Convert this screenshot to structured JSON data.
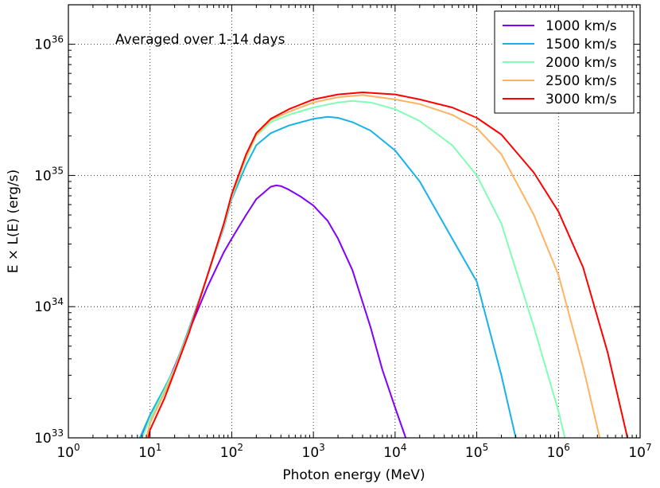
{
  "chart_data": {
    "type": "line",
    "xscale": "log",
    "yscale": "log",
    "xlim": [
      1,
      10000000
    ],
    "ylim": [
      1e+33,
      2e+36
    ],
    "xlabel": "Photon energy (MeV)",
    "ylabel": "E × L(E) (erg/s)",
    "annotation": "Averaged over 1-14 days",
    "grid": true,
    "legend_position": "top-right",
    "x_ticks": [
      {
        "value": 1,
        "base": "10",
        "exp": "0"
      },
      {
        "value": 10,
        "base": "10",
        "exp": "1"
      },
      {
        "value": 100,
        "base": "10",
        "exp": "2"
      },
      {
        "value": 1000,
        "base": "10",
        "exp": "3"
      },
      {
        "value": 10000,
        "base": "10",
        "exp": "4"
      },
      {
        "value": 100000,
        "base": "10",
        "exp": "5"
      },
      {
        "value": 1000000,
        "base": "10",
        "exp": "6"
      },
      {
        "value": 10000000,
        "base": "10",
        "exp": "7"
      }
    ],
    "y_ticks": [
      {
        "value": 1e+33,
        "base": "10",
        "exp": "33"
      },
      {
        "value": 1e+34,
        "base": "10",
        "exp": "34"
      },
      {
        "value": 1e+35,
        "base": "10",
        "exp": "35"
      },
      {
        "value": 1e+36,
        "base": "10",
        "exp": "36"
      }
    ],
    "series": [
      {
        "name": "1000 km/s",
        "color": "#8000ff",
        "points": [
          [
            7.5,
            1e+33
          ],
          [
            10,
            1.4e+33
          ],
          [
            15,
            2.3e+33
          ],
          [
            20,
            3.5e+33
          ],
          [
            30,
            6.5e+33
          ],
          [
            50,
            1.4e+34
          ],
          [
            80,
            2.6e+34
          ],
          [
            100,
            3.3e+34
          ],
          [
            150,
            5e+34
          ],
          [
            200,
            6.6e+34
          ],
          [
            300,
            8.2e+34
          ],
          [
            350,
            8.4e+34
          ],
          [
            400,
            8.3e+34
          ],
          [
            500,
            7.8e+34
          ],
          [
            700,
            6.9e+34
          ],
          [
            1000,
            5.9e+34
          ],
          [
            1500,
            4.5e+34
          ],
          [
            2000,
            3.3e+34
          ],
          [
            3000,
            1.9e+34
          ],
          [
            5000,
            7e+33
          ],
          [
            7000,
            3.3e+33
          ],
          [
            10000,
            1.7e+33
          ],
          [
            13500,
            1e+33
          ]
        ]
      },
      {
        "name": "1500 km/s",
        "color": "#18b2e8",
        "points": [
          [
            7.5,
            1e+33
          ],
          [
            10,
            1.5e+33
          ],
          [
            15,
            2.4e+33
          ],
          [
            20,
            3.4e+33
          ],
          [
            30,
            6.8e+33
          ],
          [
            50,
            1.7e+34
          ],
          [
            80,
            4e+34
          ],
          [
            100,
            6.6e+34
          ],
          [
            150,
            1.2e+35
          ],
          [
            200,
            1.7e+35
          ],
          [
            300,
            2.1e+35
          ],
          [
            500,
            2.4e+35
          ],
          [
            1000,
            2.7e+35
          ],
          [
            1500,
            2.8e+35
          ],
          [
            2000,
            2.75e+35
          ],
          [
            3000,
            2.55e+35
          ],
          [
            5000,
            2.2e+35
          ],
          [
            10000,
            1.55e+35
          ],
          [
            20000,
            9e+34
          ],
          [
            50000,
            3.3e+34
          ],
          [
            100000,
            1.55e+34
          ],
          [
            200000,
            3e+33
          ],
          [
            300000,
            1e+33
          ]
        ]
      },
      {
        "name": "2000 km/s",
        "color": "#80ffb4",
        "points": [
          [
            8,
            1e+33
          ],
          [
            10,
            1.4e+33
          ],
          [
            15,
            2.3e+33
          ],
          [
            20,
            3.4e+33
          ],
          [
            30,
            6.5e+33
          ],
          [
            50,
            1.7e+34
          ],
          [
            80,
            4.1e+34
          ],
          [
            100,
            6.8e+34
          ],
          [
            150,
            1.35e+35
          ],
          [
            200,
            2e+35
          ],
          [
            300,
            2.55e+35
          ],
          [
            500,
            2.9e+35
          ],
          [
            1000,
            3.3e+35
          ],
          [
            2000,
            3.6e+35
          ],
          [
            3000,
            3.7e+35
          ],
          [
            5000,
            3.6e+35
          ],
          [
            10000,
            3.2e+35
          ],
          [
            20000,
            2.6e+35
          ],
          [
            50000,
            1.7e+35
          ],
          [
            100000,
            1e+35
          ],
          [
            200000,
            4.3e+34
          ],
          [
            500000,
            7e+33
          ],
          [
            1000000,
            1.6e+33
          ],
          [
            1200000,
            1e+33
          ]
        ]
      },
      {
        "name": "2500 km/s",
        "color": "#ffb360",
        "points": [
          [
            9,
            1e+33
          ],
          [
            10,
            1.3e+33
          ],
          [
            15,
            2.2e+33
          ],
          [
            20,
            3.3e+33
          ],
          [
            30,
            6.5e+33
          ],
          [
            50,
            1.7e+34
          ],
          [
            80,
            4.2e+34
          ],
          [
            100,
            7e+34
          ],
          [
            150,
            1.4e+35
          ],
          [
            200,
            2.05e+35
          ],
          [
            300,
            2.65e+35
          ],
          [
            500,
            3.05e+35
          ],
          [
            1000,
            3.6e+35
          ],
          [
            2000,
            3.95e+35
          ],
          [
            4000,
            4.1e+35
          ],
          [
            10000,
            3.8e+35
          ],
          [
            20000,
            3.5e+35
          ],
          [
            50000,
            2.9e+35
          ],
          [
            100000,
            2.3e+35
          ],
          [
            200000,
            1.45e+35
          ],
          [
            500000,
            5e+34
          ],
          [
            1000000,
            1.75e+34
          ],
          [
            2000000,
            3.5e+33
          ],
          [
            3200000,
            1e+33
          ]
        ]
      },
      {
        "name": "3000 km/s",
        "color": "#ff0000",
        "points": [
          [
            9.5,
            1e+33
          ],
          [
            10,
            1.15e+33
          ],
          [
            15,
            2e+33
          ],
          [
            20,
            3.2e+33
          ],
          [
            30,
            6.3e+33
          ],
          [
            50,
            1.7e+34
          ],
          [
            80,
            4.3e+34
          ],
          [
            100,
            7.2e+34
          ],
          [
            150,
            1.45e+35
          ],
          [
            200,
            2.1e+35
          ],
          [
            300,
            2.7e+35
          ],
          [
            500,
            3.2e+35
          ],
          [
            1000,
            3.8e+35
          ],
          [
            2000,
            4.15e+35
          ],
          [
            4000,
            4.3e+35
          ],
          [
            10000,
            4.15e+35
          ],
          [
            20000,
            3.8e+35
          ],
          [
            50000,
            3.3e+35
          ],
          [
            100000,
            2.75e+35
          ],
          [
            200000,
            2.05e+35
          ],
          [
            500000,
            1.05e+35
          ],
          [
            1000000,
            5.3e+34
          ],
          [
            2000000,
            2e+34
          ],
          [
            4000000,
            4.5e+33
          ],
          [
            7000000,
            1e+33
          ]
        ]
      }
    ]
  }
}
